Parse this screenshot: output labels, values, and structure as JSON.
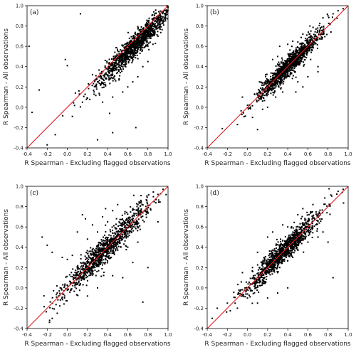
{
  "chart_data": [
    {
      "panel": "(a)",
      "type": "scatter",
      "xlabel": "R Spearman - Excluding flagged observations",
      "ylabel": "R Spearman - All observations",
      "xlim": [
        -0.4,
        1.0
      ],
      "ylim": [
        -0.4,
        1.0
      ],
      "xticks": [
        "-0.4",
        "-0.2",
        "0.0",
        "0.2",
        "0.4",
        "0.6",
        "0.8",
        "1.0"
      ],
      "yticks": [
        "-0.4",
        "-0.2",
        "0.0",
        "0.2",
        "0.4",
        "0.6",
        "0.8",
        "1.0"
      ],
      "grid": false,
      "reference_line": {
        "x": [
          -0.4,
          1.0
        ],
        "y": [
          -0.4,
          1.0
        ],
        "color": "#e41a1c"
      },
      "points": [
        [
          -0.38,
          0.6
        ],
        [
          0.13,
          0.92
        ],
        [
          -0.35,
          -0.05
        ],
        [
          -0.28,
          0.17
        ],
        [
          -0.2,
          -0.37
        ],
        [
          -0.12,
          -0.27
        ],
        [
          -0.02,
          0.47
        ],
        [
          0.0,
          0.41
        ],
        [
          0.05,
          -0.09
        ],
        [
          0.08,
          0.14
        ],
        [
          0.12,
          0.13
        ],
        [
          0.15,
          0.05
        ],
        [
          0.2,
          0.09
        ],
        [
          0.22,
          0.22
        ],
        [
          0.25,
          0.32
        ],
        [
          0.3,
          0.25
        ],
        [
          0.32,
          0.12
        ],
        [
          0.35,
          0.05
        ],
        [
          0.38,
          0.21
        ],
        [
          0.4,
          0.32
        ],
        [
          0.42,
          -0.06
        ],
        [
          0.45,
          0.1
        ],
        [
          0.48,
          0.26
        ],
        [
          0.5,
          0.42
        ],
        [
          0.52,
          0.31
        ],
        [
          0.55,
          0.52
        ],
        [
          0.58,
          0.44
        ],
        [
          0.6,
          0.6
        ],
        [
          0.62,
          0.53
        ],
        [
          0.65,
          0.68
        ],
        [
          0.68,
          0.61
        ],
        [
          0.7,
          0.72
        ],
        [
          0.72,
          0.65
        ],
        [
          0.75,
          0.76
        ],
        [
          0.78,
          0.7
        ],
        [
          0.8,
          0.82
        ],
        [
          0.82,
          0.75
        ],
        [
          0.85,
          0.86
        ],
        [
          0.88,
          0.8
        ],
        [
          0.9,
          0.9
        ],
        [
          0.6,
          0.2
        ],
        [
          0.65,
          0.25
        ],
        [
          0.7,
          0.3
        ],
        [
          0.75,
          0.4
        ],
        [
          0.8,
          0.45
        ],
        [
          0.55,
          0.15
        ],
        [
          0.68,
          -0.2
        ],
        [
          0.45,
          -0.25
        ],
        [
          0.3,
          -0.32
        ],
        [
          0.8,
          0.6
        ],
        [
          0.85,
          0.62
        ],
        [
          0.9,
          0.7
        ],
        [
          0.92,
          0.84
        ],
        [
          0.95,
          0.93
        ]
      ],
      "cloud": {
        "center": [
          0.68,
          0.62
        ],
        "spread": 0.14,
        "n": 1200
      }
    },
    {
      "panel": "(b)",
      "type": "scatter",
      "xlabel": "R Spearman - Excluding flagged observations",
      "ylabel": "R Spearman - All observations",
      "xlim": [
        -0.4,
        1.0
      ],
      "ylim": [
        -0.4,
        1.0
      ],
      "xticks": [
        "-0.4",
        "-0.2",
        "0.0",
        "0.2",
        "0.4",
        "0.6",
        "0.8",
        "1.0"
      ],
      "yticks": [
        "-0.4",
        "-0.2",
        "0.0",
        "0.2",
        "0.4",
        "0.6",
        "0.8",
        "1.0"
      ],
      "grid": false,
      "reference_line": {
        "x": [
          -0.4,
          1.0
        ],
        "y": [
          -0.4,
          1.0
        ],
        "color": "#e41a1c"
      },
      "points": [
        [
          -0.25,
          -0.21
        ],
        [
          -0.1,
          -0.17
        ],
        [
          -0.05,
          0.1
        ],
        [
          0.0,
          0.02
        ],
        [
          0.05,
          -0.1
        ],
        [
          0.1,
          -0.22
        ],
        [
          0.12,
          0.25
        ],
        [
          0.18,
          0.32
        ],
        [
          0.2,
          0.0
        ],
        [
          0.25,
          0.47
        ],
        [
          0.3,
          0.5
        ],
        [
          0.35,
          0.15
        ],
        [
          0.4,
          0.62
        ],
        [
          0.45,
          0.65
        ],
        [
          0.5,
          0.25
        ],
        [
          0.55,
          0.72
        ],
        [
          0.6,
          0.3
        ],
        [
          0.62,
          0.8
        ],
        [
          0.7,
          0.4
        ],
        [
          0.75,
          0.88
        ],
        [
          0.8,
          0.9
        ],
        [
          0.85,
          0.92
        ],
        [
          0.9,
          0.95
        ],
        [
          0.95,
          0.97
        ],
        [
          0.55,
          0.2
        ],
        [
          0.48,
          0.15
        ],
        [
          0.7,
          0.35
        ],
        [
          0.15,
          -0.02
        ],
        [
          0.28,
          0.1
        ],
        [
          0.32,
          0.6
        ]
      ],
      "cloud": {
        "center": [
          0.42,
          0.42
        ],
        "spread": 0.12,
        "n": 1200
      }
    },
    {
      "panel": "(c)",
      "type": "scatter",
      "xlabel": "R Spearman - Excluding flagged observations",
      "ylabel": "R Spearman - All observations",
      "xlim": [
        -0.4,
        1.0
      ],
      "ylim": [
        -0.4,
        1.0
      ],
      "xticks": [
        "-0.4",
        "-0.2",
        "0.0",
        "0.2",
        "0.4",
        "0.6",
        "0.8",
        "1.0"
      ],
      "yticks": [
        "-0.4",
        "-0.2",
        "0.0",
        "0.2",
        "0.4",
        "0.6",
        "0.8",
        "1.0"
      ],
      "grid": false,
      "reference_line": {
        "x": [
          -0.4,
          1.0
        ],
        "y": [
          -0.4,
          1.0
        ],
        "color": "#e41a1c"
      },
      "points": [
        [
          -0.25,
          0.5
        ],
        [
          -0.2,
          0.42
        ],
        [
          -0.15,
          0.35
        ],
        [
          -0.1,
          -0.05
        ],
        [
          -0.05,
          0.3
        ],
        [
          0.0,
          0.28
        ],
        [
          0.05,
          0.32
        ],
        [
          0.1,
          0.55
        ],
        [
          0.15,
          0.72
        ],
        [
          0.18,
          0.68
        ],
        [
          0.2,
          0.48
        ],
        [
          0.25,
          0.62
        ],
        [
          0.3,
          0.55
        ],
        [
          0.35,
          0.7
        ],
        [
          0.38,
          0.78
        ],
        [
          0.4,
          0.65
        ],
        [
          0.45,
          0.76
        ],
        [
          0.5,
          0.82
        ],
        [
          0.55,
          0.55
        ],
        [
          0.6,
          0.4
        ],
        [
          0.65,
          0.25
        ],
        [
          0.7,
          0.45
        ],
        [
          0.8,
          0.2
        ],
        [
          0.75,
          -0.14
        ],
        [
          0.55,
          0.1
        ],
        [
          0.45,
          0.12
        ],
        [
          0.3,
          0.0
        ],
        [
          0.2,
          -0.08
        ],
        [
          -0.1,
          -0.25
        ],
        [
          -0.15,
          -0.3
        ],
        [
          0.9,
          0.92
        ],
        [
          0.95,
          0.97
        ],
        [
          0.9,
          0.65
        ]
      ],
      "cloud": {
        "center": [
          0.38,
          0.38
        ],
        "spread": 0.16,
        "n": 1100
      }
    },
    {
      "panel": "(d)",
      "type": "scatter",
      "xlabel": "R Spearman - Excluding flagged observations",
      "ylabel": "R Spearman - All observations",
      "xlim": [
        -0.4,
        1.0
      ],
      "ylim": [
        -0.4,
        1.0
      ],
      "xticks": [
        "-0.4",
        "-0.2",
        "0.0",
        "0.2",
        "0.4",
        "0.6",
        "0.8",
        "1.0"
      ],
      "yticks": [
        "-0.4",
        "-0.2",
        "0.0",
        "0.2",
        "0.4",
        "0.6",
        "0.8",
        "1.0"
      ],
      "grid": false,
      "reference_line": {
        "x": [
          -0.4,
          1.0
        ],
        "y": [
          -0.4,
          1.0
        ],
        "color": "#e41a1c"
      },
      "points": [
        [
          -0.35,
          -0.3
        ],
        [
          -0.3,
          -0.2
        ],
        [
          -0.2,
          -0.15
        ],
        [
          -0.1,
          -0.2
        ],
        [
          -0.05,
          0.15
        ],
        [
          0.0,
          -0.1
        ],
        [
          0.05,
          0.2
        ],
        [
          0.1,
          0.35
        ],
        [
          0.15,
          0.05
        ],
        [
          0.2,
          0.5
        ],
        [
          0.25,
          0.55
        ],
        [
          0.3,
          0.15
        ],
        [
          0.35,
          0.62
        ],
        [
          0.4,
          0.6
        ],
        [
          0.45,
          0.3
        ],
        [
          0.5,
          0.72
        ],
        [
          0.55,
          0.78
        ],
        [
          0.6,
          0.45
        ],
        [
          0.65,
          0.82
        ],
        [
          0.7,
          0.5
        ],
        [
          0.75,
          0.55
        ],
        [
          0.8,
          0.45
        ],
        [
          0.85,
          0.1
        ],
        [
          0.9,
          0.95
        ],
        [
          0.95,
          0.97
        ],
        [
          0.1,
          -0.15
        ],
        [
          0.2,
          -0.1
        ],
        [
          0.3,
          -0.05
        ],
        [
          0.4,
          0.0
        ]
      ],
      "cloud": {
        "center": [
          0.35,
          0.35
        ],
        "spread": 0.14,
        "n": 1100
      }
    }
  ]
}
